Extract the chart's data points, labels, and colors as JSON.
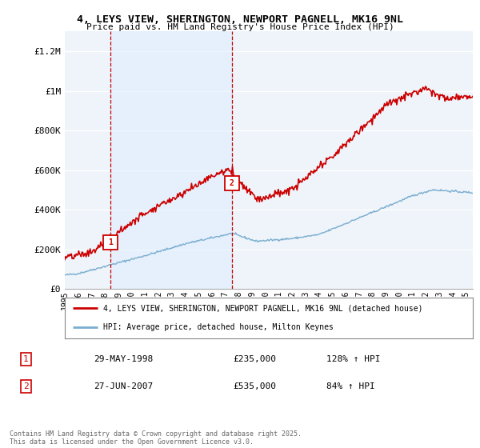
{
  "title": "4, LEYS VIEW, SHERINGTON, NEWPORT PAGNELL, MK16 9NL",
  "subtitle": "Price paid vs. HM Land Registry's House Price Index (HPI)",
  "ylabel_ticks": [
    "£0",
    "£200K",
    "£400K",
    "£600K",
    "£800K",
    "£1M",
    "£1.2M"
  ],
  "ytick_values": [
    0,
    200000,
    400000,
    600000,
    800000,
    1000000,
    1200000
  ],
  "ylim": [
    0,
    1300000
  ],
  "xlim_start": 1995.0,
  "xlim_end": 2025.5,
  "red_color": "#cc0000",
  "blue_color": "#7aadcf",
  "shade_color": "#ddeeff",
  "legend_label_red": "4, LEYS VIEW, SHERINGTON, NEWPORT PAGNELL, MK16 9NL (detached house)",
  "legend_label_blue": "HPI: Average price, detached house, Milton Keynes",
  "transaction1_label": "1",
  "transaction1_date": "29-MAY-1998",
  "transaction1_price": "£235,000",
  "transaction1_hpi": "128% ↑ HPI",
  "transaction2_label": "2",
  "transaction2_date": "27-JUN-2007",
  "transaction2_price": "£535,000",
  "transaction2_hpi": "84% ↑ HPI",
  "footer": "Contains HM Land Registry data © Crown copyright and database right 2025.\nThis data is licensed under the Open Government Licence v3.0.",
  "marker1_x": 1998.41,
  "marker1_y": 235000,
  "marker2_x": 2007.49,
  "marker2_y": 535000,
  "vline1_x": 1998.41,
  "vline2_x": 2007.49,
  "background_color": "#ffffff",
  "grid_color": "#cccccc"
}
